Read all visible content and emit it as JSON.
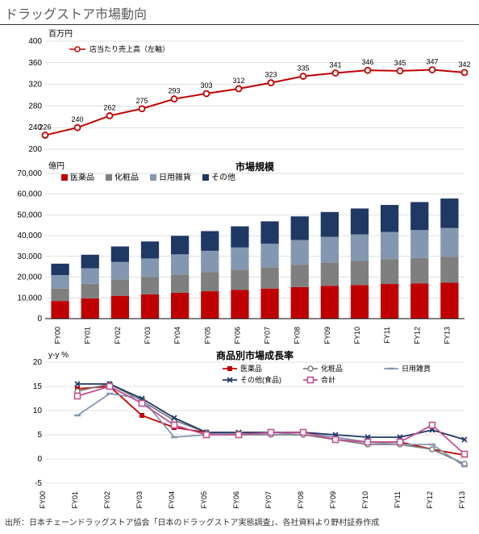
{
  "title": "ドラッグストア市場動向",
  "source": "出所：日本チェーンドラッグストア協会「日本のドラッグストア実態調査」、各社資料より野村証券作成",
  "chart1": {
    "type": "line",
    "unit_label": "百万円",
    "series_label": "店当たり売上高（左軸）",
    "title_fontsize": 10,
    "categories": [
      "FY00",
      "FY01",
      "FY02",
      "FY03",
      "FY04",
      "FY05",
      "FY06",
      "FY07",
      "FY08",
      "FY09",
      "FY10",
      "FY11",
      "FY12",
      "FY13"
    ],
    "values": [
      226,
      240,
      262,
      275,
      293,
      303,
      312,
      323,
      335,
      341,
      346,
      345,
      347,
      342
    ],
    "ylim": [
      200,
      400
    ],
    "ytick_step": 40,
    "line_color": "#c00000",
    "marker_fill": "#ffffff",
    "marker_stroke": "#c00000",
    "grid_color": "#bfbfbf",
    "background_color": "#ffffff",
    "label_fontsize": 10
  },
  "chart2": {
    "type": "stacked_bar",
    "unit_label": "億円",
    "title": "市場規模",
    "categories": [
      "FY00",
      "FY01",
      "FY02",
      "FY03",
      "FY04",
      "FY05",
      "FY06",
      "FY07",
      "FY08",
      "FY09",
      "FY10",
      "FY11",
      "FY12",
      "FY13"
    ],
    "series": [
      {
        "name": "医薬品",
        "color": "#c00000",
        "values": [
          8500,
          9800,
          11000,
          11700,
          12500,
          13200,
          13800,
          14500,
          15200,
          15800,
          16200,
          16700,
          17000,
          17300
        ]
      },
      {
        "name": "化粧品",
        "color": "#7f7f7f",
        "values": [
          6000,
          7000,
          7800,
          8300,
          8800,
          9300,
          9800,
          10300,
          10800,
          11200,
          11600,
          11900,
          12200,
          12500
        ]
      },
      {
        "name": "日用雑貨",
        "color": "#8497b0",
        "values": [
          6500,
          7500,
          8500,
          9000,
          9700,
          10200,
          10700,
          11300,
          11900,
          12400,
          12800,
          13200,
          13500,
          13900
        ]
      },
      {
        "name": "その他",
        "color": "#203864",
        "values": [
          5500,
          6500,
          7500,
          8200,
          8900,
          9500,
          10200,
          10800,
          11400,
          12000,
          12500,
          13000,
          13500,
          14200
        ]
      }
    ],
    "ylim": [
      0,
      70000
    ],
    "ytick_step": 10000,
    "grid_color": "#bfbfbf",
    "bar_width": 0.6
  },
  "chart3": {
    "type": "line",
    "unit_label": "y-y %",
    "title": "商品別市場成長率",
    "categories": [
      "FY00",
      "FY01",
      "FY02",
      "FY03",
      "FY04",
      "FY05",
      "FY06",
      "FY07",
      "FY08",
      "FY09",
      "FY10",
      "FY11",
      "FY12",
      "FY13"
    ],
    "series": [
      {
        "name": "医薬品",
        "color": "#c00000",
        "marker": "square",
        "values": [
          null,
          14.5,
          15.0,
          9.0,
          6.5,
          5.5,
          5.0,
          5.5,
          5.5,
          4.0,
          3.5,
          3.5,
          2.0,
          0.8
        ]
      },
      {
        "name": "化粧品",
        "color": "#7f7f7f",
        "marker": "circle",
        "values": [
          null,
          14.0,
          15.5,
          12.0,
          8.0,
          5.5,
          5.0,
          5.0,
          5.0,
          4.0,
          3.0,
          3.0,
          2.0,
          -1.0
        ]
      },
      {
        "name": "日用雑貨",
        "color": "#8497b0",
        "marker": "dash",
        "values": [
          null,
          9.0,
          13.5,
          12.5,
          4.5,
          5.0,
          5.5,
          5.0,
          5.5,
          4.5,
          3.5,
          3.0,
          3.0,
          -1.5
        ]
      },
      {
        "name": "その他(食品)",
        "color": "#203864",
        "marker": "x",
        "values": [
          null,
          15.5,
          15.5,
          12.5,
          8.5,
          5.5,
          5.5,
          5.5,
          5.5,
          5.0,
          4.5,
          4.5,
          6.0,
          4.0
        ]
      },
      {
        "name": "合計",
        "color": "#c05090",
        "marker": "square_open",
        "values": [
          null,
          13.0,
          15.0,
          11.5,
          7.0,
          5.0,
          5.0,
          5.5,
          5.5,
          4.0,
          3.5,
          3.5,
          7.0,
          1.0
        ]
      }
    ],
    "ylim": [
      -5,
      20
    ],
    "ytick_step": 5,
    "grid_color": "#bfbfbf"
  }
}
